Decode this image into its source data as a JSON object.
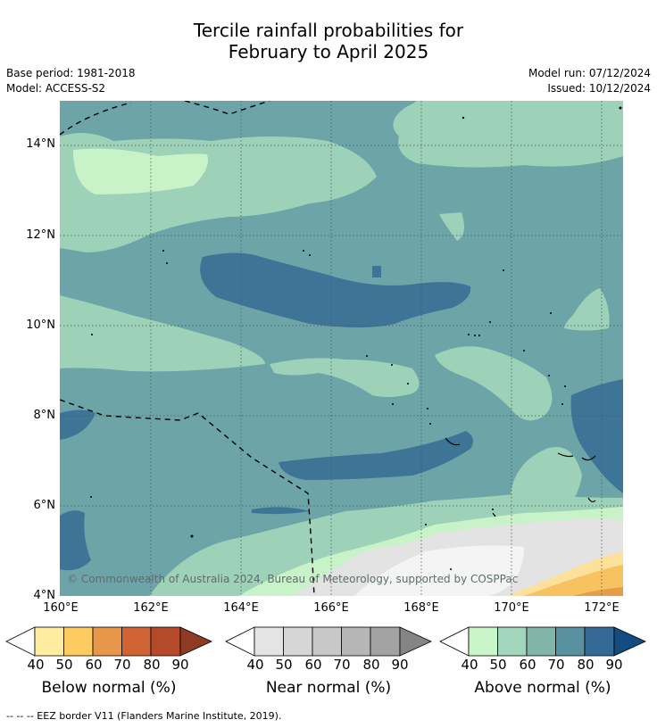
{
  "title": {
    "line1": "Tercile rainfall probabilities for",
    "line2": "February to April 2025"
  },
  "metadata": {
    "base_period": "Base period: 1981-2018",
    "model": "Model: ACCESS-S2",
    "model_run": "Model run: 07/12/2024",
    "issued": "Issued: 10/12/2024"
  },
  "map": {
    "copyright": "© Commonwealth of Australia 2024, Bureau of Meteorology, supported by COSPPac",
    "lat_ticks": [
      "14°N",
      "12°N",
      "10°N",
      "8°N",
      "6°N",
      "4°N"
    ],
    "lon_ticks": [
      "160°E",
      "162°E",
      "164°E",
      "166°E",
      "168°E",
      "170°E",
      "172°E"
    ],
    "category_colors": {
      "above_50": "#c8f2c8",
      "above_60": "#9dd1b8",
      "above_70": "#6da4a8",
      "above_80": "#3e7496",
      "near_40": "#e3e3e3",
      "below_50": "#fde099",
      "below_60": "#f7c361",
      "below_70": "#e79c4a"
    }
  },
  "colorbars": [
    {
      "title": "Below normal (%)",
      "labels": [
        "40",
        "50",
        "60",
        "70",
        "80",
        "90"
      ],
      "colors": [
        "#ffffff",
        "#feeca1",
        "#fdcb62",
        "#e6974a",
        "#cf6333",
        "#b44a2a",
        "#8f3a22"
      ]
    },
    {
      "title": "Near normal (%)",
      "labels": [
        "40",
        "50",
        "60",
        "70",
        "80",
        "90"
      ],
      "colors": [
        "#ffffff",
        "#e4e4e4",
        "#d6d6d6",
        "#c8c8c8",
        "#b6b6b6",
        "#a3a3a3",
        "#858585"
      ]
    },
    {
      "title": "Above normal (%)",
      "labels": [
        "40",
        "50",
        "60",
        "70",
        "80",
        "90"
      ],
      "colors": [
        "#ffffff",
        "#c9f5c9",
        "#a1d6bc",
        "#80b5a8",
        "#5891a0",
        "#356996",
        "#124c83"
      ]
    }
  ],
  "footer": "--  --  -- EEZ border V11 (Flanders Marine Institute, 2019)."
}
